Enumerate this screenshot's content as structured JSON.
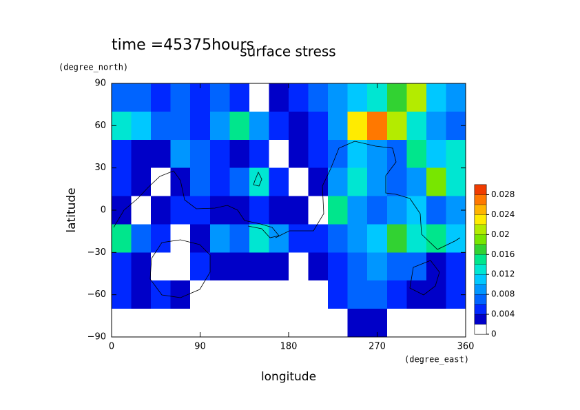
{
  "chart_data": {
    "type": "contour",
    "title": "surface stress",
    "subtitle": "time =45375hours",
    "x_label": "longitude",
    "x_unit": "(degree_east)",
    "y_label": "latitude",
    "y_unit": "(degree_north)",
    "xlim": [
      0,
      360
    ],
    "xticks": [
      0,
      90,
      180,
      270,
      360
    ],
    "ylim": [
      -90,
      90
    ],
    "yticks": [
      {
        "value": -90,
        "label": "−90"
      },
      {
        "value": -60,
        "label": "−60"
      },
      {
        "value": -30,
        "label": "−30"
      },
      0,
      30,
      60,
      90
    ],
    "lon": [
      10,
      30,
      50,
      70,
      90,
      110,
      130,
      150,
      170,
      190,
      210,
      230,
      250,
      270,
      290,
      310,
      330,
      350
    ],
    "lat": [
      80,
      60,
      40,
      20,
      0,
      -20,
      -40,
      -60,
      -80
    ],
    "z": [
      [
        0.006,
        0.006,
        0.005,
        0.006,
        0.005,
        0.006,
        0.004,
        0,
        0.003,
        0.005,
        0.006,
        0.008,
        0.01,
        0.012,
        0.016,
        0.02,
        0.01,
        0.008
      ],
      [
        0.012,
        0.01,
        0.006,
        0.006,
        0.004,
        0.008,
        0.014,
        0.008,
        0.004,
        0.003,
        0.005,
        0.008,
        0.022,
        0.026,
        0.02,
        0.012,
        0.008,
        0.006
      ],
      [
        0.005,
        0.002,
        0.003,
        0.008,
        0.006,
        0.004,
        0.003,
        0.004,
        0.001,
        0.002,
        0.004,
        0.006,
        0.01,
        0.008,
        0.006,
        0.014,
        0.01,
        0.012
      ],
      [
        0.004,
        0.003,
        0.001,
        0.003,
        0.006,
        0.005,
        0.006,
        0.012,
        0.005,
        0.001,
        0.003,
        0.008,
        0.012,
        0.008,
        0.006,
        0.008,
        0.018,
        0.012
      ],
      [
        0.003,
        0.001,
        0.002,
        0.004,
        0.005,
        0.003,
        0.002,
        0.004,
        0.003,
        0.002,
        0.001,
        0.014,
        0.008,
        0.006,
        0.008,
        0.01,
        0.006,
        0.008
      ],
      [
        0.014,
        0.006,
        0.004,
        0.001,
        0.003,
        0.008,
        0.006,
        0.012,
        0.008,
        0.005,
        0.004,
        0.006,
        0.008,
        0.01,
        0.016,
        0.012,
        0.014,
        0.01
      ],
      [
        0.004,
        0.002,
        0.001,
        0.001,
        0.004,
        0.002,
        0.002,
        0.003,
        0.002,
        0.001,
        0.002,
        0.004,
        0.006,
        0.008,
        0.006,
        0.006,
        0.003,
        0.004
      ],
      [
        0.004,
        0.003,
        0.004,
        0.002,
        0.001,
        0,
        0,
        0,
        0,
        0,
        0,
        0.004,
        0.006,
        0.006,
        0.004,
        0.003,
        0.003,
        0.004
      ],
      [
        0,
        0,
        0,
        0,
        0,
        0,
        0,
        0,
        0,
        0,
        0,
        0,
        0.003,
        0.002,
        0,
        0,
        0,
        0
      ]
    ],
    "levels": [
      0,
      0.002,
      0.004,
      0.006,
      0.008,
      0.01,
      0.012,
      0.014,
      0.016,
      0.018,
      0.02,
      0.022,
      0.024,
      0.026,
      0.028,
      0.03
    ],
    "colors": [
      "#ffffff",
      "#0000c8",
      "#0028ff",
      "#0064ff",
      "#0096ff",
      "#00c8ff",
      "#00e6d2",
      "#00e68c",
      "#32d232",
      "#78e600",
      "#b4eb00",
      "#ffeb00",
      "#ffb400",
      "#ff7800",
      "#f03c00"
    ],
    "colorbar_ticks": [
      0,
      0.004,
      0.008,
      0.012,
      0.016,
      0.02,
      0.024,
      0.028
    ]
  }
}
